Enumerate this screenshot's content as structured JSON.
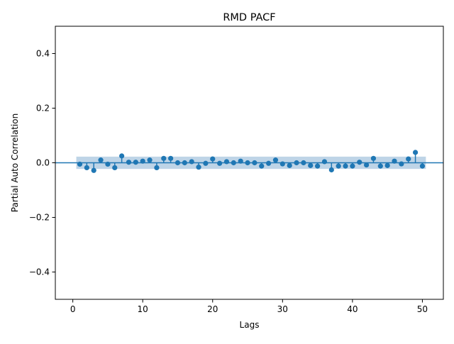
{
  "chart_data": {
    "type": "scatter",
    "title": "RMD PACF",
    "xlabel": "Lags",
    "ylabel": "Partial Auto Correlation",
    "xlim": [
      -2.5,
      53
    ],
    "ylim": [
      -0.5,
      0.5
    ],
    "xticks": [
      0,
      10,
      20,
      30,
      40,
      50
    ],
    "xtick_labels": [
      "0",
      "10",
      "20",
      "30",
      "40",
      "50"
    ],
    "yticks": [
      -0.4,
      -0.2,
      0.0,
      0.2,
      0.4
    ],
    "ytick_labels": [
      "−0.4",
      "−0.2",
      "0.0",
      "0.2",
      "0.4"
    ],
    "confidence_band": {
      "x_range": [
        0.5,
        50.5
      ],
      "lower": -0.0225,
      "upper": 0.0225
    },
    "zero_line": 0,
    "grid": false,
    "series": [
      {
        "name": "PACF",
        "color": "#1f77b4",
        "x": [
          1,
          2,
          3,
          4,
          5,
          6,
          7,
          8,
          9,
          10,
          11,
          12,
          13,
          14,
          15,
          16,
          17,
          18,
          19,
          20,
          21,
          22,
          23,
          24,
          25,
          26,
          27,
          28,
          29,
          30,
          31,
          32,
          33,
          34,
          35,
          36,
          37,
          38,
          39,
          40,
          41,
          42,
          43,
          44,
          45,
          46,
          47,
          48,
          49,
          50
        ],
        "values": [
          -0.005,
          -0.018,
          -0.028,
          0.01,
          -0.005,
          -0.018,
          0.025,
          0.002,
          0.002,
          0.006,
          0.01,
          -0.018,
          0.016,
          0.016,
          0.0,
          0.0,
          0.004,
          -0.016,
          -0.002,
          0.014,
          -0.002,
          0.004,
          0.0,
          0.006,
          0.0,
          0.0,
          -0.012,
          -0.002,
          0.01,
          -0.004,
          -0.01,
          0.0,
          0.0,
          -0.01,
          -0.012,
          0.004,
          -0.026,
          -0.012,
          -0.012,
          -0.012,
          0.002,
          -0.008,
          0.016,
          -0.012,
          -0.01,
          0.006,
          -0.004,
          0.014,
          0.038,
          -0.012
        ]
      }
    ]
  },
  "colors": {
    "marker": "#1f77b4",
    "band": "#b3cde3",
    "zero_line": "#1f77b4"
  }
}
